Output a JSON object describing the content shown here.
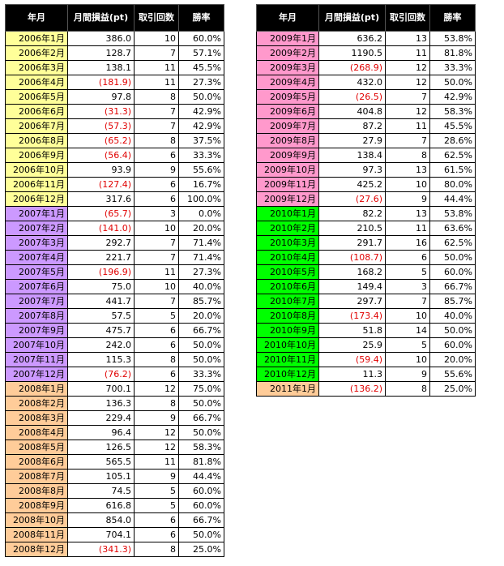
{
  "headers": [
    "年月",
    "月間損益(pt)",
    "取引回数",
    "勝率"
  ],
  "year_colors": {
    "2006": "#ffff99",
    "2007": "#cc99ff",
    "2008": "#ffcc99",
    "2009": "#ff99cc",
    "2010": "#00ff00",
    "2011": "#ffcc99"
  },
  "negative_color": "#e00000",
  "left_rows": [
    {
      "month": "2006年1月",
      "pl": "386.0",
      "trades": "10",
      "win": "60.0%",
      "year": "2006",
      "neg": false
    },
    {
      "month": "2006年2月",
      "pl": "128.7",
      "trades": "7",
      "win": "57.1%",
      "year": "2006",
      "neg": false
    },
    {
      "month": "2006年3月",
      "pl": "138.1",
      "trades": "11",
      "win": "45.5%",
      "year": "2006",
      "neg": false
    },
    {
      "month": "2006年4月",
      "pl": "(181.9)",
      "trades": "11",
      "win": "27.3%",
      "year": "2006",
      "neg": true
    },
    {
      "month": "2006年5月",
      "pl": "97.8",
      "trades": "8",
      "win": "50.0%",
      "year": "2006",
      "neg": false
    },
    {
      "month": "2006年6月",
      "pl": "(31.3)",
      "trades": "7",
      "win": "42.9%",
      "year": "2006",
      "neg": true
    },
    {
      "month": "2006年7月",
      "pl": "(57.3)",
      "trades": "7",
      "win": "42.9%",
      "year": "2006",
      "neg": true
    },
    {
      "month": "2006年8月",
      "pl": "(65.2)",
      "trades": "8",
      "win": "37.5%",
      "year": "2006",
      "neg": true
    },
    {
      "month": "2006年9月",
      "pl": "(56.4)",
      "trades": "6",
      "win": "33.3%",
      "year": "2006",
      "neg": true
    },
    {
      "month": "2006年10月",
      "pl": "93.9",
      "trades": "9",
      "win": "55.6%",
      "year": "2006",
      "neg": false
    },
    {
      "month": "2006年11月",
      "pl": "(127.4)",
      "trades": "6",
      "win": "16.7%",
      "year": "2006",
      "neg": true
    },
    {
      "month": "2006年12月",
      "pl": "317.6",
      "trades": "6",
      "win": "100.0%",
      "year": "2006",
      "neg": false
    },
    {
      "month": "2007年1月",
      "pl": "(65.7)",
      "trades": "3",
      "win": "0.0%",
      "year": "2007",
      "neg": true
    },
    {
      "month": "2007年2月",
      "pl": "(141.0)",
      "trades": "10",
      "win": "20.0%",
      "year": "2007",
      "neg": true
    },
    {
      "month": "2007年3月",
      "pl": "292.7",
      "trades": "7",
      "win": "71.4%",
      "year": "2007",
      "neg": false
    },
    {
      "month": "2007年4月",
      "pl": "221.7",
      "trades": "7",
      "win": "71.4%",
      "year": "2007",
      "neg": false
    },
    {
      "month": "2007年5月",
      "pl": "(196.9)",
      "trades": "11",
      "win": "27.3%",
      "year": "2007",
      "neg": true
    },
    {
      "month": "2007年6月",
      "pl": "75.0",
      "trades": "10",
      "win": "40.0%",
      "year": "2007",
      "neg": false
    },
    {
      "month": "2007年7月",
      "pl": "441.7",
      "trades": "7",
      "win": "85.7%",
      "year": "2007",
      "neg": false
    },
    {
      "month": "2007年8月",
      "pl": "57.5",
      "trades": "5",
      "win": "20.0%",
      "year": "2007",
      "neg": false
    },
    {
      "month": "2007年9月",
      "pl": "475.7",
      "trades": "6",
      "win": "66.7%",
      "year": "2007",
      "neg": false
    },
    {
      "month": "2007年10月",
      "pl": "242.0",
      "trades": "6",
      "win": "50.0%",
      "year": "2007",
      "neg": false
    },
    {
      "month": "2007年11月",
      "pl": "115.3",
      "trades": "8",
      "win": "50.0%",
      "year": "2007",
      "neg": false
    },
    {
      "month": "2007年12月",
      "pl": "(76.2)",
      "trades": "6",
      "win": "33.3%",
      "year": "2007",
      "neg": true
    },
    {
      "month": "2008年1月",
      "pl": "700.1",
      "trades": "12",
      "win": "75.0%",
      "year": "2008",
      "neg": false
    },
    {
      "month": "2008年2月",
      "pl": "136.3",
      "trades": "8",
      "win": "50.0%",
      "year": "2008",
      "neg": false
    },
    {
      "month": "2008年3月",
      "pl": "229.4",
      "trades": "9",
      "win": "66.7%",
      "year": "2008",
      "neg": false
    },
    {
      "month": "2008年4月",
      "pl": "96.4",
      "trades": "12",
      "win": "50.0%",
      "year": "2008",
      "neg": false
    },
    {
      "month": "2008年5月",
      "pl": "126.5",
      "trades": "12",
      "win": "58.3%",
      "year": "2008",
      "neg": false
    },
    {
      "month": "2008年6月",
      "pl": "565.5",
      "trades": "11",
      "win": "81.8%",
      "year": "2008",
      "neg": false
    },
    {
      "month": "2008年7月",
      "pl": "105.1",
      "trades": "9",
      "win": "44.4%",
      "year": "2008",
      "neg": false
    },
    {
      "month": "2008年8月",
      "pl": "74.5",
      "trades": "5",
      "win": "60.0%",
      "year": "2008",
      "neg": false
    },
    {
      "month": "2008年9月",
      "pl": "616.8",
      "trades": "5",
      "win": "60.0%",
      "year": "2008",
      "neg": false
    },
    {
      "month": "2008年10月",
      "pl": "854.0",
      "trades": "6",
      "win": "66.7%",
      "year": "2008",
      "neg": false
    },
    {
      "month": "2008年11月",
      "pl": "704.1",
      "trades": "6",
      "win": "50.0%",
      "year": "2008",
      "neg": false
    },
    {
      "month": "2008年12月",
      "pl": "(341.3)",
      "trades": "8",
      "win": "25.0%",
      "year": "2008",
      "neg": true
    }
  ],
  "right_rows": [
    {
      "month": "2009年1月",
      "pl": "636.2",
      "trades": "13",
      "win": "53.8%",
      "year": "2009",
      "neg": false
    },
    {
      "month": "2009年2月",
      "pl": "1190.5",
      "trades": "11",
      "win": "81.8%",
      "year": "2009",
      "neg": false
    },
    {
      "month": "2009年3月",
      "pl": "(268.9)",
      "trades": "12",
      "win": "33.3%",
      "year": "2009",
      "neg": true
    },
    {
      "month": "2009年4月",
      "pl": "432.0",
      "trades": "12",
      "win": "50.0%",
      "year": "2009",
      "neg": false
    },
    {
      "month": "2009年5月",
      "pl": "(26.5)",
      "trades": "7",
      "win": "42.9%",
      "year": "2009",
      "neg": true
    },
    {
      "month": "2009年6月",
      "pl": "404.8",
      "trades": "12",
      "win": "58.3%",
      "year": "2009",
      "neg": false
    },
    {
      "month": "2009年7月",
      "pl": "87.2",
      "trades": "11",
      "win": "45.5%",
      "year": "2009",
      "neg": false
    },
    {
      "month": "2009年8月",
      "pl": "27.9",
      "trades": "7",
      "win": "28.6%",
      "year": "2009",
      "neg": false
    },
    {
      "month": "2009年9月",
      "pl": "138.4",
      "trades": "8",
      "win": "62.5%",
      "year": "2009",
      "neg": false
    },
    {
      "month": "2009年10月",
      "pl": "97.3",
      "trades": "13",
      "win": "61.5%",
      "year": "2009",
      "neg": false
    },
    {
      "month": "2009年11月",
      "pl": "425.2",
      "trades": "10",
      "win": "80.0%",
      "year": "2009",
      "neg": false
    },
    {
      "month": "2009年12月",
      "pl": "(27.6)",
      "trades": "9",
      "win": "44.4%",
      "year": "2009",
      "neg": true
    },
    {
      "month": "2010年1月",
      "pl": "82.2",
      "trades": "13",
      "win": "53.8%",
      "year": "2010",
      "neg": false
    },
    {
      "month": "2010年2月",
      "pl": "210.5",
      "trades": "11",
      "win": "63.6%",
      "year": "2010",
      "neg": false
    },
    {
      "month": "2010年3月",
      "pl": "291.7",
      "trades": "16",
      "win": "62.5%",
      "year": "2010",
      "neg": false
    },
    {
      "month": "2010年4月",
      "pl": "(108.7)",
      "trades": "6",
      "win": "50.0%",
      "year": "2010",
      "neg": true
    },
    {
      "month": "2010年5月",
      "pl": "168.2",
      "trades": "5",
      "win": "60.0%",
      "year": "2010",
      "neg": false
    },
    {
      "month": "2010年6月",
      "pl": "149.4",
      "trades": "3",
      "win": "66.7%",
      "year": "2010",
      "neg": false
    },
    {
      "month": "2010年7月",
      "pl": "297.7",
      "trades": "7",
      "win": "85.7%",
      "year": "2010",
      "neg": false
    },
    {
      "month": "2010年8月",
      "pl": "(173.4)",
      "trades": "10",
      "win": "40.0%",
      "year": "2010",
      "neg": true
    },
    {
      "month": "2010年9月",
      "pl": "51.8",
      "trades": "14",
      "win": "50.0%",
      "year": "2010",
      "neg": false
    },
    {
      "month": "2010年10月",
      "pl": "25.9",
      "trades": "5",
      "win": "60.0%",
      "year": "2010",
      "neg": false
    },
    {
      "month": "2010年11月",
      "pl": "(59.4)",
      "trades": "10",
      "win": "20.0%",
      "year": "2010",
      "neg": true
    },
    {
      "month": "2010年12月",
      "pl": "11.3",
      "trades": "9",
      "win": "55.6%",
      "year": "2010",
      "neg": false
    },
    {
      "month": "2011年1月",
      "pl": "(136.2)",
      "trades": "8",
      "win": "25.0%",
      "year": "2011",
      "neg": true
    }
  ]
}
